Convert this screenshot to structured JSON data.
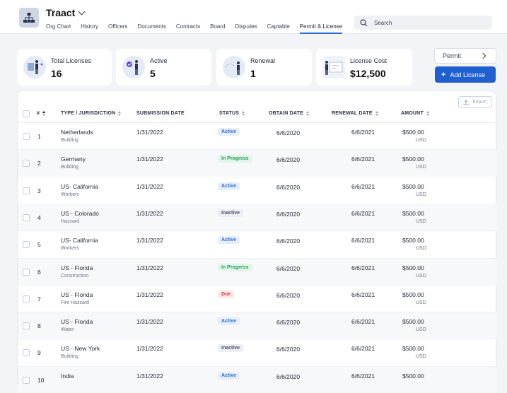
{
  "header": {
    "brand": "Traact",
    "tabs": [
      "Org Chart",
      "History",
      "Officers",
      "Documents",
      "Contracts",
      "Board",
      "Disputes",
      "Captable",
      "Permit & License"
    ],
    "active_tab": 8,
    "search_placeholder": "Search"
  },
  "stats": [
    {
      "label": "Total Licenses",
      "value": "16"
    },
    {
      "label": "Active",
      "value": "5"
    },
    {
      "label": "Renewal",
      "value": "1"
    },
    {
      "label": "License Cost",
      "value": "$12,500"
    }
  ],
  "permit_button": "Permit",
  "add_license_button": "Add License",
  "export_button": "Export",
  "table": {
    "columns": [
      "#",
      "TYPE / JURISDICTION",
      "SUBMISSION DATE",
      "STATUS",
      "OBTAIN DATE",
      "RENEWAL DATE",
      "AMOUNT"
    ],
    "rows": [
      {
        "num": "1",
        "jurisdiction": "Netherlands",
        "type": "Building",
        "submission": "1/31/2022",
        "status": "Active",
        "obtain": "6/6/2020",
        "renewal": "6/6/2021",
        "amount": "$500.00",
        "currency": "USD"
      },
      {
        "num": "2",
        "jurisdiction": "Germany",
        "type": "Building",
        "submission": "1/31/2022",
        "status": "In Progress",
        "obtain": "6/6/2020",
        "renewal": "6/6/2021",
        "amount": "$500.00",
        "currency": "USD"
      },
      {
        "num": "3",
        "jurisdiction": "US- California",
        "type": "Workers",
        "submission": "1/31/2022",
        "status": "Active",
        "obtain": "6/6/2020",
        "renewal": "6/6/2021",
        "amount": "$500.00",
        "currency": "USD"
      },
      {
        "num": "4",
        "jurisdiction": "US - Colorado",
        "type": "Hazzard",
        "submission": "1/31/2022",
        "status": "Inactive",
        "obtain": "6/6/2020",
        "renewal": "6/6/2021",
        "amount": "$500.00",
        "currency": "USD"
      },
      {
        "num": "5",
        "jurisdiction": "US- California",
        "type": "Workers",
        "submission": "1/31/2022",
        "status": "Active",
        "obtain": "6/6/2020",
        "renewal": "6/6/2021",
        "amount": "$500.00",
        "currency": "USD"
      },
      {
        "num": "6",
        "jurisdiction": "US - Florida",
        "type": "Construction",
        "submission": "1/31/2022",
        "status": "In Progress",
        "obtain": "6/6/2020",
        "renewal": "6/6/2021",
        "amount": "$500.00",
        "currency": "USD"
      },
      {
        "num": "7",
        "jurisdiction": "US - Florida",
        "type": "Fire Hazzard",
        "submission": "1/31/2022",
        "status": "Due",
        "obtain": "6/6/2020",
        "renewal": "6/6/2021",
        "amount": "$500.00",
        "currency": "USD"
      },
      {
        "num": "8",
        "jurisdiction": "US - Florida",
        "type": "Water",
        "submission": "1/31/2022",
        "status": "Active",
        "obtain": "6/6/2020",
        "renewal": "6/6/2021",
        "amount": "$500.00",
        "currency": "USD"
      },
      {
        "num": "9",
        "jurisdiction": "US - New York",
        "type": "Building",
        "submission": "1/31/2022",
        "status": "Inactive",
        "obtain": "6/6/2020",
        "renewal": "6/6/2021",
        "amount": "$500.00",
        "currency": "USD"
      },
      {
        "num": "10",
        "jurisdiction": "India",
        "type": "",
        "submission": "1/31/2022",
        "status": "Active",
        "obtain": "6/6/2020",
        "renewal": "6/6/2021",
        "amount": "$500.00",
        "currency": ""
      }
    ]
  },
  "status_colors": {
    "Active": {
      "bg": "#e6eefb",
      "fg": "#2f6fd1"
    },
    "In Progress": {
      "bg": "#e3f5ea",
      "fg": "#1f9d55"
    },
    "Inactive": {
      "bg": "#eceef3",
      "fg": "#4a5166"
    },
    "Due": {
      "bg": "#fbe6e8",
      "fg": "#d23a4b"
    }
  },
  "icons": {
    "search": "search-icon",
    "logo": "org-chart-icon",
    "export": "upload-icon",
    "permit_arrow": "chevron-right-icon",
    "brand_dropdown": "chevron-down-icon"
  }
}
